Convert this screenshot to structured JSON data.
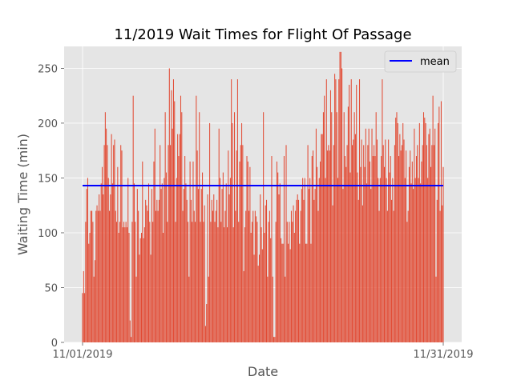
{
  "chart_data": {
    "type": "bar",
    "title": "11/2019 Wait Times for Flight Of Passage",
    "xlabel": "Date",
    "ylabel": "Waiting Time (min)",
    "ylim": [
      0,
      270
    ],
    "yticks": [
      0,
      50,
      100,
      150,
      200,
      250
    ],
    "xticks": [
      {
        "at": 0,
        "label": "11/01/2019"
      },
      {
        "at": 1,
        "label": "11/31/2019"
      }
    ],
    "grid": true,
    "legend_position": "top-right",
    "series": [
      {
        "name": "",
        "color": "#E24A33"
      },
      {
        "name": "mean",
        "color": "#0000FF",
        "value": 143
      }
    ],
    "values": [
      45,
      65,
      45,
      110,
      140,
      150,
      90,
      100,
      120,
      120,
      110,
      60,
      75,
      120,
      125,
      120,
      135,
      120,
      145,
      160,
      135,
      180,
      210,
      195,
      180,
      150,
      120,
      135,
      190,
      145,
      180,
      185,
      120,
      110,
      160,
      100,
      110,
      180,
      175,
      105,
      110,
      105,
      110,
      105,
      150,
      100,
      20,
      5,
      110,
      225,
      145,
      110,
      60,
      140,
      120,
      80,
      95,
      100,
      165,
      95,
      105,
      130,
      125,
      120,
      145,
      110,
      80,
      140,
      110,
      165,
      195,
      120,
      130,
      120,
      130,
      180,
      140,
      145,
      100,
      150,
      210,
      155,
      110,
      180,
      250,
      180,
      230,
      195,
      240,
      220,
      110,
      150,
      190,
      170,
      190,
      225,
      210,
      120,
      140,
      170,
      145,
      130,
      110,
      60,
      165,
      130,
      110,
      165,
      120,
      110,
      225,
      175,
      140,
      210,
      110,
      140,
      155,
      110,
      125,
      15,
      35,
      135,
      60,
      200,
      110,
      130,
      120,
      135,
      110,
      120,
      130,
      105,
      195,
      150,
      110,
      140,
      155,
      105,
      120,
      145,
      105,
      175,
      135,
      150,
      240,
      200,
      105,
      210,
      120,
      175,
      240,
      110,
      165,
      180,
      200,
      180,
      65,
      105,
      120,
      170,
      165,
      120,
      160,
      100,
      110,
      120,
      80,
      120,
      115,
      110,
      70,
      80,
      135,
      105,
      85,
      210,
      100,
      125,
      130,
      60,
      110,
      120,
      95,
      170,
      60,
      5,
      5,
      110,
      165,
      155,
      135,
      145,
      95,
      90,
      90,
      170,
      60,
      180,
      110,
      90,
      110,
      85,
      120,
      110,
      125,
      100,
      120,
      130,
      135,
      130,
      90,
      120,
      140,
      150,
      130,
      150,
      90,
      90,
      180,
      140,
      150,
      90,
      170,
      175,
      130,
      140,
      195,
      160,
      120,
      150,
      165,
      190,
      190,
      210,
      225,
      150,
      240,
      175,
      180,
      175,
      230,
      210,
      125,
      180,
      245,
      240,
      210,
      150,
      240,
      265,
      265,
      250,
      140,
      210,
      170,
      160,
      180,
      215,
      235,
      155,
      240,
      180,
      185,
      210,
      190,
      235,
      155,
      130,
      240,
      160,
      185,
      125,
      180,
      160,
      195,
      145,
      180,
      195,
      165,
      140,
      195,
      170,
      180,
      170,
      210,
      185,
      150,
      120,
      150,
      170,
      240,
      180,
      160,
      185,
      150,
      120,
      185,
      155,
      170,
      130,
      150,
      120,
      180,
      205,
      210,
      200,
      170,
      190,
      175,
      180,
      200,
      185,
      150,
      175,
      110,
      120,
      160,
      175,
      145,
      165,
      140,
      195,
      150,
      170,
      180,
      150,
      200,
      145,
      165,
      180,
      210,
      205,
      200,
      180,
      150,
      190,
      195,
      160,
      180,
      225,
      180,
      195,
      60,
      130,
      200,
      215,
      120,
      220,
      125,
      160
    ]
  }
}
